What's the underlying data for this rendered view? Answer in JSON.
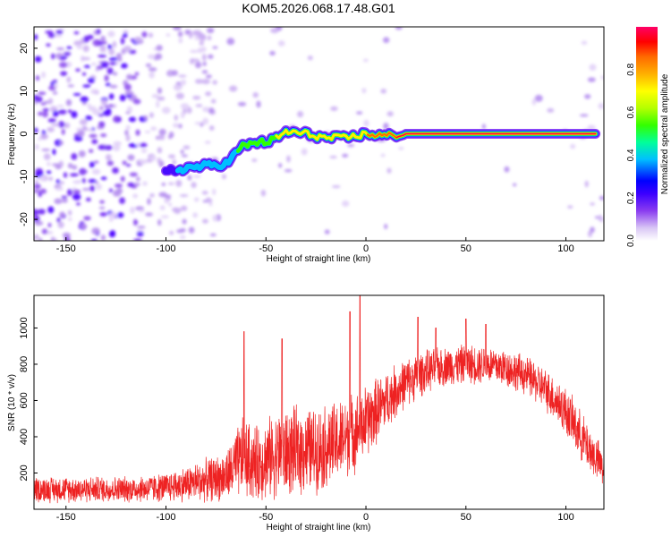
{
  "figure_title": "KOM5.2026.068.17.48.G01",
  "chart_data": [
    {
      "type": "heatmap",
      "title": "KOM5.2026.068.17.48.G01",
      "xlabel": "Height of straight line (km)",
      "ylabel": "Frequency (Hz)",
      "xlim": [
        -166,
        119
      ],
      "ylim": [
        -25,
        25
      ],
      "xticks": [
        -150,
        -100,
        -50,
        0,
        50,
        100
      ],
      "yticks": [
        -20,
        -10,
        0,
        10,
        20
      ],
      "colorbar": {
        "label": "Normalized spectral amplitude",
        "range": [
          0,
          1
        ],
        "ticks": [
          0.0,
          0.2,
          0.4,
          0.6,
          0.8
        ],
        "tick_labels": [
          "0.0",
          "0.2",
          "0.4",
          "0.6",
          "0.8"
        ],
        "colormap": [
          "#ffffff",
          "#d9c6f5",
          "#8a3cf0",
          "#3b00ff",
          "#0000ff",
          "#00bfff",
          "#00ff9a",
          "#33ff00",
          "#b5ff00",
          "#ffff00",
          "#ffb000",
          "#ff6a00",
          "#ff0000",
          "#ff0066"
        ]
      },
      "ridge": {
        "description_points_km_hz": [
          [
            -100,
            -9
          ],
          [
            -90,
            -8
          ],
          [
            -80,
            -7.5
          ],
          [
            -70,
            -7
          ],
          [
            -62,
            -3
          ],
          [
            -55,
            -2
          ],
          [
            -50,
            -2
          ],
          [
            -44,
            -1
          ],
          [
            -40,
            0.5
          ],
          [
            -30,
            0
          ],
          [
            -20,
            -1
          ],
          [
            -10,
            -1
          ],
          [
            0,
            0
          ],
          [
            10,
            -0.5
          ],
          [
            20,
            0
          ],
          [
            115,
            0
          ]
        ],
        "peak_amplitude": 0.95
      }
    },
    {
      "type": "line",
      "xlabel": "Height of straight line (km)",
      "ylabel": "SNR (10 * v/v)",
      "xlim": [
        -166,
        119
      ],
      "ylim": [
        0,
        1180
      ],
      "xticks": [
        -150,
        -100,
        -50,
        0,
        50,
        100
      ],
      "yticks": [
        200,
        400,
        600,
        800,
        1000
      ],
      "series": [
        {
          "name": "SNR",
          "color": "#ee2222",
          "envelope_x": [
            -166,
            -120,
            -100,
            -80,
            -70,
            -62,
            -55,
            -45,
            -35,
            -25,
            -15,
            -5,
            0,
            10,
            20,
            30,
            40,
            50,
            60,
            70,
            80,
            90,
            100,
            110,
            119
          ],
          "envelope_mean": [
            110,
            110,
            120,
            160,
            180,
            280,
            250,
            300,
            320,
            330,
            360,
            430,
            480,
            600,
            700,
            760,
            790,
            800,
            800,
            780,
            740,
            660,
            540,
            360,
            220
          ],
          "envelope_spread": [
            80,
            80,
            90,
            130,
            150,
            250,
            230,
            260,
            270,
            260,
            260,
            240,
            230,
            180,
            150,
            130,
            120,
            120,
            120,
            120,
            120,
            130,
            150,
            150,
            120
          ],
          "peaks": [
            [
              -61,
              980
            ],
            [
              -42,
              940
            ],
            [
              -8,
              1090
            ],
            [
              -3,
              1180
            ],
            [
              26,
              1060
            ],
            [
              35,
              1000
            ],
            [
              50,
              1050
            ],
            [
              60,
              1020
            ]
          ]
        }
      ]
    }
  ]
}
